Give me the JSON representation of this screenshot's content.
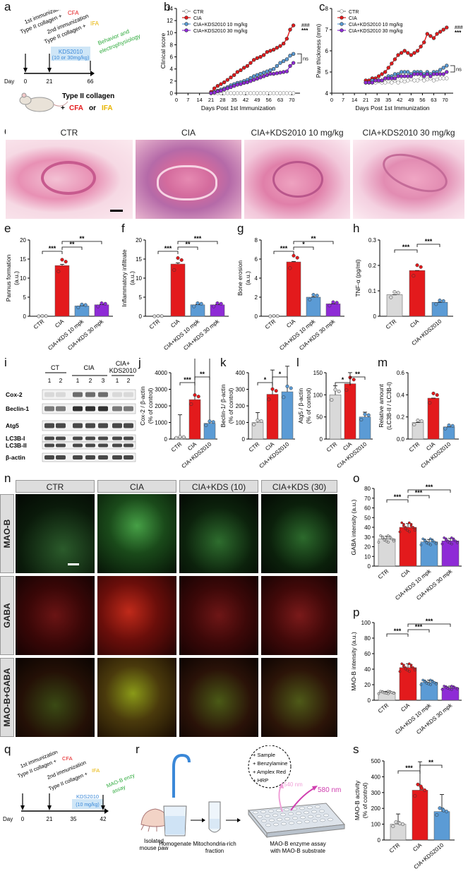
{
  "panels": {
    "a": "a",
    "b": "b",
    "c": "c",
    "d": "d",
    "e": "e",
    "f": "f",
    "g": "g",
    "h": "h",
    "i": "i",
    "j": "j",
    "k": "k",
    "l": "l",
    "m": "m",
    "n": "n",
    "o": "o",
    "p": "p",
    "q": "q",
    "r": "r",
    "s": "s"
  },
  "colors": {
    "ctr": "#d9d9d9",
    "cia": "#e31a1c",
    "kds10": "#5b9bd5",
    "kds30": "#8e2bd6",
    "cfa": "#e31a1c",
    "ifa": "#e8b400",
    "green": "#2eaa3c",
    "blue": "#3a88d8"
  },
  "timeline_a": {
    "first_imm": "1st immunization",
    "first_col": "Type II collagen +",
    "cfa": "CFA",
    "second_imm": "2nd immunization",
    "second_col": "Type II collagen +",
    "ifa": "IFA",
    "drug": "KDS2010",
    "dose": "(10 or 30mg/kg)",
    "behavior": "Behavior and",
    "electro": "electrophysiology",
    "day": "Day",
    "days": [
      "0",
      "21",
      "66"
    ],
    "mouse_label1": "Type II collagen",
    "mouse_label2": "+",
    "mouse_cfa": "CFA",
    "mouse_or": "or",
    "mouse_ifa": "IFA"
  },
  "legend_bc": [
    "CTR",
    "CIA",
    "CIA+KDS2010 10 mg/kg",
    "CIA+KDS2010 30 mg/kg"
  ],
  "chart_b": {
    "type": "line",
    "ylabel": "Clinical score",
    "xlabel": "Days Post 1st Immunization",
    "ylim": [
      0,
      14
    ],
    "yticks": [
      "0",
      "2",
      "4",
      "6",
      "8",
      "10",
      "12",
      "14"
    ],
    "xticks": [
      "0",
      "7",
      "14",
      "21",
      "28",
      "35",
      "42",
      "49",
      "56",
      "63",
      "70"
    ],
    "x": [
      21,
      23,
      25,
      27,
      29,
      31,
      33,
      35,
      37,
      39,
      41,
      43,
      45,
      47,
      49,
      51,
      53,
      55,
      57,
      59,
      61,
      63,
      65,
      67,
      69,
      71
    ],
    "series": [
      {
        "name": "CTR",
        "values": [
          0,
          0,
          0,
          0,
          0,
          0,
          0,
          0,
          0,
          0,
          0,
          0,
          0,
          0,
          0,
          0,
          0,
          0,
          0,
          0,
          0,
          0,
          0,
          0,
          0,
          0
        ]
      },
      {
        "name": "CIA",
        "values": [
          0.2,
          0.8,
          1.2,
          1.5,
          1.8,
          2.2,
          2.6,
          3.0,
          3.5,
          3.8,
          4.2,
          4.5,
          5.0,
          5.5,
          5.8,
          6.0,
          6.3,
          6.8,
          7.0,
          7.2,
          7.5,
          7.8,
          8.2,
          9.0,
          10.5,
          11.2
        ]
      },
      {
        "name": "CIA+KDS2010 10 mg/kg",
        "values": [
          0,
          0.2,
          0.4,
          0.6,
          0.8,
          1.0,
          1.3,
          1.5,
          1.7,
          1.8,
          2.0,
          2.2,
          2.5,
          2.8,
          3.0,
          3.2,
          3.4,
          3.6,
          3.8,
          4.0,
          4.5,
          5.0,
          5.3,
          5.6,
          6.2,
          6.5
        ]
      },
      {
        "name": "CIA+KDS2010 30 mg/kg",
        "values": [
          0,
          0.1,
          0.3,
          0.4,
          0.6,
          0.8,
          1.0,
          1.2,
          1.4,
          1.5,
          1.7,
          1.8,
          2.0,
          2.2,
          2.4,
          2.6,
          2.8,
          3.0,
          3.2,
          3.2,
          3.3,
          3.4,
          3.5,
          3.6,
          4.5,
          5.0
        ]
      }
    ],
    "sig_hash": "###",
    "sig_star": "***",
    "sig_ns": "ns"
  },
  "chart_c": {
    "type": "line",
    "ylabel": "Paw thickness (mm)",
    "xlabel": "Days Post 1st Immunization",
    "ylim": [
      4,
      8
    ],
    "yticks": [
      "4",
      "5",
      "6",
      "7",
      "8"
    ],
    "xticks": [
      "0",
      "7",
      "14",
      "21",
      "28",
      "35",
      "42",
      "49",
      "56",
      "63",
      "70"
    ],
    "x": [
      21,
      23,
      25,
      27,
      29,
      31,
      33,
      35,
      37,
      39,
      41,
      43,
      45,
      47,
      49,
      51,
      53,
      55,
      57,
      59,
      61,
      63,
      65,
      67,
      69,
      71
    ],
    "series": [
      {
        "name": "CTR",
        "values": [
          4.5,
          4.5,
          4.5,
          4.5,
          4.55,
          4.5,
          4.5,
          4.55,
          4.5,
          4.6,
          4.5,
          4.6,
          4.55,
          4.6,
          4.65,
          4.6,
          4.6,
          4.7,
          4.6,
          4.65,
          4.7,
          4.6,
          4.65,
          4.7,
          4.7,
          4.7
        ]
      },
      {
        "name": "CIA",
        "values": [
          4.6,
          4.6,
          4.7,
          4.7,
          4.8,
          4.9,
          5.0,
          5.2,
          5.4,
          5.6,
          5.8,
          5.9,
          6.0,
          5.9,
          5.8,
          5.9,
          6.0,
          6.2,
          6.4,
          6.8,
          6.7,
          6.6,
          6.8,
          6.9,
          7.0,
          7.1
        ]
      },
      {
        "name": "CIA+KDS2010 10 mg/kg",
        "values": [
          4.5,
          4.5,
          4.6,
          4.6,
          4.6,
          4.6,
          4.7,
          4.8,
          4.8,
          4.9,
          4.9,
          5.0,
          5.0,
          5.0,
          4.9,
          5.0,
          5.0,
          5.0,
          4.9,
          5.0,
          4.9,
          5.0,
          5.0,
          5.1,
          5.2,
          5.3
        ]
      },
      {
        "name": "CIA+KDS2010 30 mg/kg",
        "values": [
          4.5,
          4.5,
          4.5,
          4.6,
          4.6,
          4.6,
          4.7,
          4.7,
          4.7,
          4.7,
          4.8,
          4.8,
          4.8,
          4.8,
          4.8,
          4.9,
          4.9,
          4.9,
          4.8,
          4.9,
          4.8,
          4.9,
          4.9,
          4.9,
          4.9,
          5.0
        ]
      }
    ],
    "sig_hash": "###",
    "sig_star": "***",
    "sig_ns": "ns"
  },
  "histo_d": [
    "CTR",
    "CIA",
    "CIA+KDS2010 10 mg/kg",
    "CIA+KDS2010 30 mg/kg"
  ],
  "bar_cats_4": [
    "CTR",
    "CIA",
    "CIA+KDS 10 mpk",
    "CIA+KDS 30 mpk"
  ],
  "bar_cats_3": [
    "CTR",
    "CIA",
    "CIA+KDS2010"
  ],
  "chart_e": {
    "type": "bar",
    "ylabel": "Pannus formation",
    "ylim": [
      0,
      20
    ],
    "yticks": [
      "0",
      "5",
      "10",
      "15",
      "20"
    ],
    "values": [
      0,
      13.3,
      2.7,
      3.0
    ],
    "sig": [
      "***",
      "**",
      "**"
    ]
  },
  "chart_f": {
    "type": "bar",
    "ylabel": "Inflammatory infiltrate",
    "ylim": [
      0,
      20
    ],
    "yticks": [
      "0",
      "5",
      "10",
      "15",
      "20"
    ],
    "values": [
      0,
      13.7,
      3.0,
      3.0
    ],
    "sig": [
      "***",
      "**",
      "***"
    ]
  },
  "chart_g": {
    "type": "bar",
    "ylabel": "Bone erosion",
    "ylabel2": "(a.u.)",
    "ylim": [
      0,
      8
    ],
    "yticks": [
      "0",
      "2",
      "4",
      "6",
      "8"
    ],
    "values": [
      0,
      5.7,
      2.0,
      1.3
    ],
    "sig": [
      "***",
      "*",
      "**"
    ]
  },
  "chart_h": {
    "type": "bar",
    "ylabel": "TNF-α (pg/ml)",
    "ylim": [
      0,
      0.3
    ],
    "yticks": [
      "0",
      "0.1",
      "0.2",
      "0.3"
    ],
    "values": [
      0.085,
      0.18,
      0.055
    ],
    "sig": [
      "***",
      "***"
    ]
  },
  "au": "(a.u.)",
  "blot_i": {
    "groups": [
      "CT",
      "CIA",
      "CIA+",
      "KDS2010"
    ],
    "lanes": [
      "1",
      "2",
      "1",
      "2",
      "3",
      "1",
      "2"
    ],
    "rows": [
      "Cox-2",
      "Beclin-1",
      "Atg5",
      "LC3B-I",
      "LC3B-II",
      "β-actin"
    ]
  },
  "chart_j": {
    "type": "bar",
    "ylabel": "Cox-2 / β-actin",
    "ylabel2": "(% of control)",
    "ylim": [
      0,
      4000
    ],
    "yticks": [
      "0",
      "1000",
      "2000",
      "3000",
      "4000"
    ],
    "values": [
      100,
      2380,
      950
    ],
    "sig": [
      "***",
      "**"
    ]
  },
  "chart_k": {
    "type": "bar",
    "ylabel": "Beclin-1/ β-actin",
    "ylabel2": "(% of control)",
    "ylim": [
      0,
      400
    ],
    "yticks": [
      "0",
      "100",
      "200",
      "300",
      "400"
    ],
    "values": [
      100,
      270,
      285
    ],
    "sig": [
      "*",
      "*"
    ]
  },
  "chart_l": {
    "type": "bar",
    "ylabel": "Atg5 / β-actin",
    "ylabel2": "(% of control)",
    "ylim": [
      0,
      150
    ],
    "yticks": [
      "0",
      "50",
      "100",
      "150"
    ],
    "values": [
      100,
      125,
      50
    ],
    "sig": [
      "*",
      "**"
    ]
  },
  "chart_m": {
    "type": "bar",
    "ylabel": "Relative amount",
    "ylabel2": "(LC3B-II / LC3B-I)",
    "ylim": [
      0,
      0.6
    ],
    "yticks": [
      "0.0",
      "0.2",
      "0.4",
      "0.6"
    ],
    "values": [
      0.15,
      0.37,
      0.11
    ],
    "sig": []
  },
  "fluor_n": {
    "cols": [
      "CTR",
      "CIA",
      "CIA+KDS (10)",
      "CIA+KDS (30)"
    ],
    "rows": [
      "MAO-B",
      "GABA",
      "MAO-B+GABA"
    ]
  },
  "chart_o": {
    "type": "bar",
    "ylabel": "GABA intensity (a.u.)",
    "ylim": [
      0,
      80
    ],
    "yticks": [
      "0",
      "10",
      "20",
      "30",
      "40",
      "50",
      "60",
      "70",
      "80"
    ],
    "values": [
      28,
      40,
      25,
      26
    ],
    "sig": [
      "***",
      "***",
      "***"
    ]
  },
  "chart_p": {
    "type": "bar",
    "ylabel": "MAO-B intensity (a.u.)",
    "ylim": [
      0,
      100
    ],
    "yticks": [
      "0",
      "20",
      "40",
      "60",
      "80",
      "100"
    ],
    "values": [
      10,
      42,
      23,
      16
    ],
    "sig": [
      "***",
      "***",
      "***"
    ]
  },
  "timeline_q": {
    "first_imm": "1st immunization",
    "first_col": "Type II collagen +",
    "cfa": "CFA",
    "second_imm": "2nd immunization",
    "second_col": "Type II collagen +",
    "ifa": "IFA",
    "drug": "KDS2010",
    "dose": "(10 mg/kg)",
    "assay1": "MAO-B enzyme",
    "assay2": "assay",
    "day": "Day",
    "days": [
      "0",
      "21",
      "35",
      "42"
    ]
  },
  "schematic_r": {
    "paw1": "Isolated",
    "paw2": "mouse paw",
    "homog": "Homogenate",
    "mito1": "Mitochondria-rich",
    "mito2": "fraction",
    "list": [
      "+ Sample",
      "+ Benzylamine",
      "+ Amplex Red",
      "+ HRP"
    ],
    "ex": "540 nm",
    "em": "580 nm",
    "plate1": "MAO-B enzyme assay",
    "plate2": "with MAO-B substrate"
  },
  "chart_s": {
    "type": "bar",
    "ylabel": "MAO-B activity",
    "ylabel2": "(% of control)",
    "ylim": [
      0,
      500
    ],
    "yticks": [
      "0",
      "100",
      "200",
      "300",
      "400",
      "500"
    ],
    "values": [
      100,
      315,
      180
    ],
    "sig": [
      "***",
      "**"
    ]
  }
}
